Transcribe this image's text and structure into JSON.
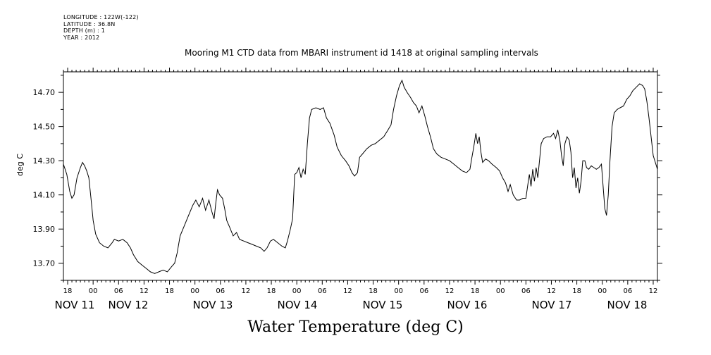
{
  "meta": {
    "longitude": "LONGITUDE : 122W(-122)",
    "latitude": "LATITUDE : 36.8N",
    "depth": "DEPTH (m) : 1",
    "year": "YEAR : 2012"
  },
  "chart_data": {
    "type": "line",
    "title": "Mooring M1 CTD data from MBARI instrument id 1418 at original sampling intervals",
    "ylabel": "deg C",
    "xlabel": "Water Temperature (deg C)",
    "xlim": [
      -7,
      133
    ],
    "ylim": [
      13.6,
      14.82
    ],
    "yticks": [
      {
        "value": 13.7,
        "label": "13.70"
      },
      {
        "value": 13.9,
        "label": "13.90"
      },
      {
        "value": 14.1,
        "label": "14.10"
      },
      {
        "value": 14.3,
        "label": "14.30"
      },
      {
        "value": 14.5,
        "label": "14.50"
      },
      {
        "value": 14.7,
        "label": "14.70"
      }
    ],
    "xticks": [
      {
        "value": -6,
        "label": "18"
      },
      {
        "value": 0,
        "label": "00"
      },
      {
        "value": 6,
        "label": "06"
      },
      {
        "value": 12,
        "label": "12"
      },
      {
        "value": 18,
        "label": "18"
      },
      {
        "value": 24,
        "label": "00"
      },
      {
        "value": 30,
        "label": "06"
      },
      {
        "value": 36,
        "label": "12"
      },
      {
        "value": 42,
        "label": "18"
      },
      {
        "value": 48,
        "label": "00"
      },
      {
        "value": 54,
        "label": "06"
      },
      {
        "value": 60,
        "label": "12"
      },
      {
        "value": 66,
        "label": "18"
      },
      {
        "value": 72,
        "label": "00"
      },
      {
        "value": 78,
        "label": "06"
      },
      {
        "value": 84,
        "label": "12"
      },
      {
        "value": 90,
        "label": "18"
      },
      {
        "value": 96,
        "label": "00"
      },
      {
        "value": 102,
        "label": "06"
      },
      {
        "value": 108,
        "label": "12"
      },
      {
        "value": 114,
        "label": "18"
      },
      {
        "value": 120,
        "label": "00"
      },
      {
        "value": 126,
        "label": "06"
      },
      {
        "value": 132,
        "label": "12"
      }
    ],
    "date_labels": [
      {
        "value": -3,
        "label": "NOV 11"
      },
      {
        "value": 12,
        "label": "NOV 12"
      },
      {
        "value": 36,
        "label": "NOV 13"
      },
      {
        "value": 60,
        "label": "NOV 14"
      },
      {
        "value": 84,
        "label": "NOV 15"
      },
      {
        "value": 108,
        "label": "NOV 16"
      },
      {
        "value": 132,
        "label": "NOV 17"
      },
      {
        "value": 156,
        "label": "NOV 18"
      }
    ],
    "series": [
      {
        "values": [
          [
            -7,
            14.28
          ],
          [
            -6.2,
            14.22
          ],
          [
            -5.5,
            14.12
          ],
          [
            -5.0,
            14.08
          ],
          [
            -4.5,
            14.1
          ],
          [
            -3.8,
            14.2
          ],
          [
            -3.0,
            14.26
          ],
          [
            -2.5,
            14.29
          ],
          [
            -2.0,
            14.27
          ],
          [
            -1.5,
            14.24
          ],
          [
            -1.0,
            14.2
          ],
          [
            -0.5,
            14.08
          ],
          [
            0.0,
            13.95
          ],
          [
            0.6,
            13.87
          ],
          [
            1.5,
            13.82
          ],
          [
            2.5,
            13.8
          ],
          [
            3.5,
            13.79
          ],
          [
            4.5,
            13.82
          ],
          [
            5.0,
            13.84
          ],
          [
            6.0,
            13.83
          ],
          [
            7.0,
            13.84
          ],
          [
            8.0,
            13.82
          ],
          [
            8.8,
            13.79
          ],
          [
            9.5,
            13.75
          ],
          [
            10.5,
            13.71
          ],
          [
            11.5,
            13.69
          ],
          [
            12.5,
            13.67
          ],
          [
            13.5,
            13.65
          ],
          [
            14.5,
            13.64
          ],
          [
            15.5,
            13.65
          ],
          [
            16.5,
            13.66
          ],
          [
            17.5,
            13.65
          ],
          [
            18.5,
            13.68
          ],
          [
            19.2,
            13.7
          ],
          [
            19.8,
            13.76
          ],
          [
            20.5,
            13.86
          ],
          [
            21.5,
            13.92
          ],
          [
            22.5,
            13.98
          ],
          [
            23.5,
            14.04
          ],
          [
            24.2,
            14.07
          ],
          [
            25.0,
            14.03
          ],
          [
            25.8,
            14.08
          ],
          [
            26.5,
            14.01
          ],
          [
            27.3,
            14.07
          ],
          [
            28.0,
            14.0
          ],
          [
            28.5,
            13.96
          ],
          [
            28.9,
            14.05
          ],
          [
            29.3,
            14.13
          ],
          [
            29.8,
            14.1
          ],
          [
            30.5,
            14.08
          ],
          [
            31.0,
            14.02
          ],
          [
            31.5,
            13.95
          ],
          [
            32.2,
            13.91
          ],
          [
            33.0,
            13.86
          ],
          [
            33.8,
            13.88
          ],
          [
            34.5,
            13.84
          ],
          [
            35.5,
            13.83
          ],
          [
            36.5,
            13.82
          ],
          [
            37.5,
            13.81
          ],
          [
            38.5,
            13.8
          ],
          [
            39.5,
            13.79
          ],
          [
            40.3,
            13.77
          ],
          [
            41.0,
            13.79
          ],
          [
            41.8,
            13.83
          ],
          [
            42.5,
            13.84
          ],
          [
            43.5,
            13.82
          ],
          [
            44.5,
            13.8
          ],
          [
            45.3,
            13.79
          ],
          [
            45.8,
            13.83
          ],
          [
            46.5,
            13.9
          ],
          [
            47.0,
            13.96
          ],
          [
            47.5,
            14.22
          ],
          [
            48.0,
            14.23
          ],
          [
            48.5,
            14.26
          ],
          [
            49.0,
            14.2
          ],
          [
            49.5,
            14.25
          ],
          [
            50.0,
            14.22
          ],
          [
            50.5,
            14.4
          ],
          [
            51.0,
            14.55
          ],
          [
            51.5,
            14.6
          ],
          [
            52.5,
            14.61
          ],
          [
            53.5,
            14.6
          ],
          [
            54.3,
            14.61
          ],
          [
            55.0,
            14.55
          ],
          [
            55.8,
            14.52
          ],
          [
            56.8,
            14.45
          ],
          [
            57.5,
            14.38
          ],
          [
            58.5,
            14.33
          ],
          [
            59.5,
            14.3
          ],
          [
            60.3,
            14.27
          ],
          [
            61.0,
            14.23
          ],
          [
            61.6,
            14.21
          ],
          [
            62.3,
            14.23
          ],
          [
            62.8,
            14.32
          ],
          [
            63.5,
            14.34
          ],
          [
            64.5,
            14.37
          ],
          [
            65.5,
            14.39
          ],
          [
            66.5,
            14.4
          ],
          [
            67.5,
            14.42
          ],
          [
            68.5,
            14.44
          ],
          [
            69.5,
            14.48
          ],
          [
            70.2,
            14.51
          ],
          [
            70.8,
            14.6
          ],
          [
            71.5,
            14.68
          ],
          [
            72.2,
            14.74
          ],
          [
            72.8,
            14.77
          ],
          [
            73.3,
            14.73
          ],
          [
            74.0,
            14.7
          ],
          [
            74.8,
            14.67
          ],
          [
            75.5,
            14.64
          ],
          [
            76.2,
            14.62
          ],
          [
            76.8,
            14.58
          ],
          [
            77.5,
            14.62
          ],
          [
            78.2,
            14.56
          ],
          [
            78.8,
            14.5
          ],
          [
            79.5,
            14.44
          ],
          [
            80.2,
            14.37
          ],
          [
            81.0,
            14.34
          ],
          [
            82.0,
            14.32
          ],
          [
            83.0,
            14.31
          ],
          [
            84.0,
            14.3
          ],
          [
            85.0,
            14.28
          ],
          [
            86.0,
            14.26
          ],
          [
            87.0,
            14.24
          ],
          [
            88.0,
            14.23
          ],
          [
            88.8,
            14.25
          ],
          [
            89.2,
            14.31
          ],
          [
            89.7,
            14.38
          ],
          [
            90.2,
            14.46
          ],
          [
            90.6,
            14.4
          ],
          [
            91.0,
            14.44
          ],
          [
            91.4,
            14.35
          ],
          [
            91.8,
            14.29
          ],
          [
            92.5,
            14.31
          ],
          [
            93.2,
            14.3
          ],
          [
            94.0,
            14.28
          ],
          [
            95.0,
            14.26
          ],
          [
            95.8,
            14.24
          ],
          [
            96.5,
            14.2
          ],
          [
            97.2,
            14.17
          ],
          [
            97.8,
            14.12
          ],
          [
            98.3,
            14.16
          ],
          [
            99.0,
            14.1
          ],
          [
            99.8,
            14.07
          ],
          [
            100.5,
            14.07
          ],
          [
            101.3,
            14.08
          ],
          [
            102.0,
            14.08
          ],
          [
            102.4,
            14.15
          ],
          [
            102.8,
            14.22
          ],
          [
            103.2,
            14.15
          ],
          [
            103.6,
            14.25
          ],
          [
            104.0,
            14.18
          ],
          [
            104.4,
            14.26
          ],
          [
            104.8,
            14.2
          ],
          [
            105.2,
            14.3
          ],
          [
            105.6,
            14.4
          ],
          [
            106.2,
            14.43
          ],
          [
            107.0,
            14.44
          ],
          [
            107.8,
            14.44
          ],
          [
            108.5,
            14.46
          ],
          [
            109.0,
            14.43
          ],
          [
            109.5,
            14.48
          ],
          [
            110.0,
            14.42
          ],
          [
            110.4,
            14.33
          ],
          [
            110.8,
            14.27
          ],
          [
            111.2,
            14.4
          ],
          [
            111.7,
            14.44
          ],
          [
            112.2,
            14.42
          ],
          [
            112.6,
            14.35
          ],
          [
            113.0,
            14.2
          ],
          [
            113.4,
            14.26
          ],
          [
            113.8,
            14.14
          ],
          [
            114.2,
            14.2
          ],
          [
            114.6,
            14.11
          ],
          [
            115.0,
            14.18
          ],
          [
            115.4,
            14.3
          ],
          [
            115.9,
            14.3
          ],
          [
            116.3,
            14.26
          ],
          [
            116.8,
            14.25
          ],
          [
            117.4,
            14.27
          ],
          [
            118.0,
            14.26
          ],
          [
            118.6,
            14.25
          ],
          [
            119.2,
            14.26
          ],
          [
            119.8,
            14.28
          ],
          [
            120.2,
            14.15
          ],
          [
            120.6,
            14.02
          ],
          [
            121.0,
            13.98
          ],
          [
            121.4,
            14.1
          ],
          [
            121.8,
            14.3
          ],
          [
            122.3,
            14.5
          ],
          [
            122.8,
            14.58
          ],
          [
            123.5,
            14.6
          ],
          [
            124.2,
            14.61
          ],
          [
            125.0,
            14.62
          ],
          [
            125.8,
            14.66
          ],
          [
            126.5,
            14.68
          ],
          [
            127.2,
            14.71
          ],
          [
            128.0,
            14.73
          ],
          [
            128.8,
            14.75
          ],
          [
            129.5,
            14.74
          ],
          [
            130.0,
            14.72
          ],
          [
            130.5,
            14.65
          ],
          [
            131.0,
            14.55
          ],
          [
            131.5,
            14.44
          ],
          [
            132.0,
            14.33
          ],
          [
            132.5,
            14.29
          ],
          [
            133.0,
            14.25
          ]
        ]
      }
    ]
  }
}
